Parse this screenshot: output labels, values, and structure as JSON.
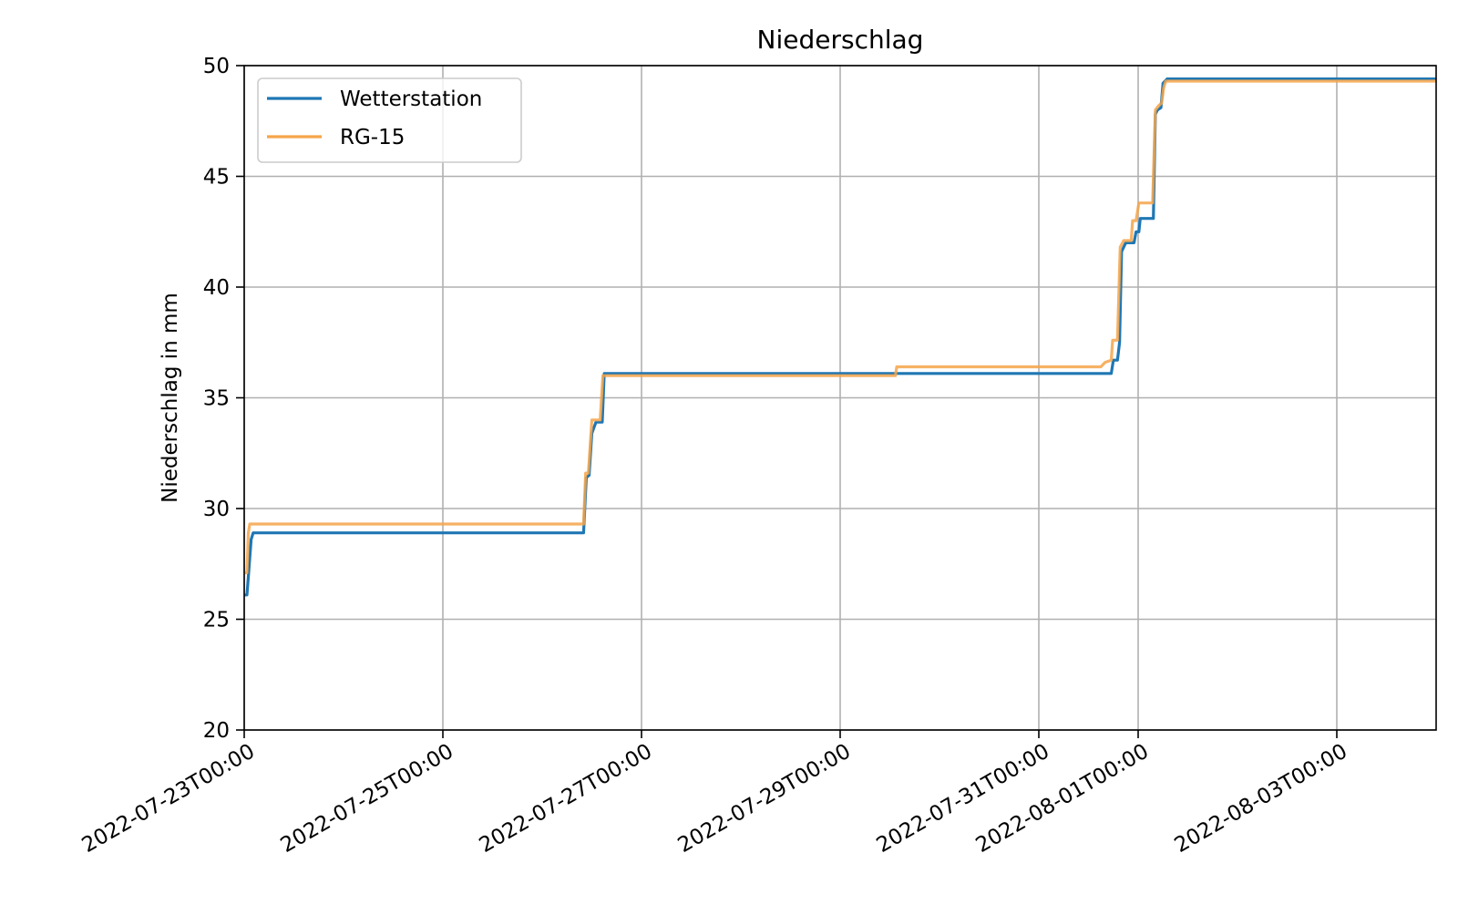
{
  "chart_data": {
    "type": "line",
    "title": "Niederschlag",
    "xlabel": "",
    "ylabel": "Niederschlag in mm",
    "ylim": [
      20,
      50
    ],
    "xlim": [
      "2022-07-23T00:00",
      "2022-08-04T00:00"
    ],
    "yticks": [
      20,
      25,
      30,
      35,
      40,
      45,
      50
    ],
    "ytick_labels": [
      "20",
      "25",
      "30",
      "35",
      "40",
      "45",
      "50"
    ],
    "xticks": [
      "2022-07-23T00:00",
      "2022-07-25T00:00",
      "2022-07-27T00:00",
      "2022-07-29T00:00",
      "2022-07-31T00:00",
      "2022-08-01T00:00",
      "2022-08-03T00:00"
    ],
    "xtick_labels": [
      "2022-07-23T00:00",
      "2022-07-25T00:00",
      "2022-07-27T00:00",
      "2022-07-29T00:00",
      "2022-07-31T00:00",
      "2022-08-01T00:00",
      "2022-08-03T00:00"
    ],
    "grid": true,
    "legend_position": "top-left",
    "series": [
      {
        "name": "Wetterstation",
        "color": "#1f77b4",
        "points": [
          [
            "2022-07-23T00:00",
            26.1
          ],
          [
            "2022-07-23T00:40",
            26.1
          ],
          [
            "2022-07-23T01:00",
            26.9
          ],
          [
            "2022-07-23T01:40",
            28.6
          ],
          [
            "2022-07-23T02:10",
            28.9
          ],
          [
            "2022-07-26T10:00",
            28.9
          ],
          [
            "2022-07-26T10:40",
            31.4
          ],
          [
            "2022-07-26T11:20",
            31.5
          ],
          [
            "2022-07-26T12:00",
            33.4
          ],
          [
            "2022-07-26T13:00",
            33.9
          ],
          [
            "2022-07-26T14:30",
            33.9
          ],
          [
            "2022-07-26T15:00",
            36.1
          ],
          [
            "2022-07-31T17:30",
            36.1
          ],
          [
            "2022-07-31T18:00",
            36.7
          ],
          [
            "2022-07-31T19:00",
            36.7
          ],
          [
            "2022-07-31T19:30",
            37.5
          ],
          [
            "2022-07-31T20:00",
            41.6
          ],
          [
            "2022-07-31T21:00",
            42.0
          ],
          [
            "2022-07-31T23:00",
            42.0
          ],
          [
            "2022-07-31T23:30",
            42.5
          ],
          [
            "2022-08-01T00:10",
            42.5
          ],
          [
            "2022-08-01T00:30",
            43.1
          ],
          [
            "2022-08-01T03:40",
            43.1
          ],
          [
            "2022-08-01T04:10",
            47.8
          ],
          [
            "2022-08-01T04:40",
            48.0
          ],
          [
            "2022-08-01T05:30",
            48.1
          ],
          [
            "2022-08-01T06:00",
            49.2
          ],
          [
            "2022-08-01T07:00",
            49.4
          ],
          [
            "2022-08-04T00:00",
            49.4
          ]
        ]
      },
      {
        "name": "RG-15",
        "color": "#f5a54a",
        "points": [
          [
            "2022-07-23T00:00",
            27.1
          ],
          [
            "2022-07-23T00:40",
            27.1
          ],
          [
            "2022-07-23T01:00",
            28.9
          ],
          [
            "2022-07-23T01:20",
            29.3
          ],
          [
            "2022-07-26T10:00",
            29.3
          ],
          [
            "2022-07-26T10:30",
            31.6
          ],
          [
            "2022-07-26T11:10",
            31.6
          ],
          [
            "2022-07-26T12:00",
            34.0
          ],
          [
            "2022-07-26T14:00",
            34.0
          ],
          [
            "2022-07-26T14:40",
            36.0
          ],
          [
            "2022-07-29T13:20",
            36.0
          ],
          [
            "2022-07-29T13:40",
            36.4
          ],
          [
            "2022-07-31T15:00",
            36.4
          ],
          [
            "2022-07-31T16:00",
            36.6
          ],
          [
            "2022-07-31T17:30",
            36.7
          ],
          [
            "2022-07-31T17:50",
            37.6
          ],
          [
            "2022-07-31T19:00",
            37.6
          ],
          [
            "2022-07-31T19:40",
            41.8
          ],
          [
            "2022-07-31T20:30",
            42.1
          ],
          [
            "2022-07-31T22:20",
            42.1
          ],
          [
            "2022-07-31T22:40",
            43.0
          ],
          [
            "2022-07-31T23:30",
            43.0
          ],
          [
            "2022-08-01T00:10",
            43.8
          ],
          [
            "2022-08-01T03:30",
            43.8
          ],
          [
            "2022-08-01T04:10",
            48.0
          ],
          [
            "2022-08-01T05:00",
            48.2
          ],
          [
            "2022-08-01T05:40",
            48.3
          ],
          [
            "2022-08-01T06:10",
            49.0
          ],
          [
            "2022-08-01T06:40",
            49.3
          ],
          [
            "2022-08-04T00:00",
            49.3
          ]
        ]
      }
    ]
  }
}
